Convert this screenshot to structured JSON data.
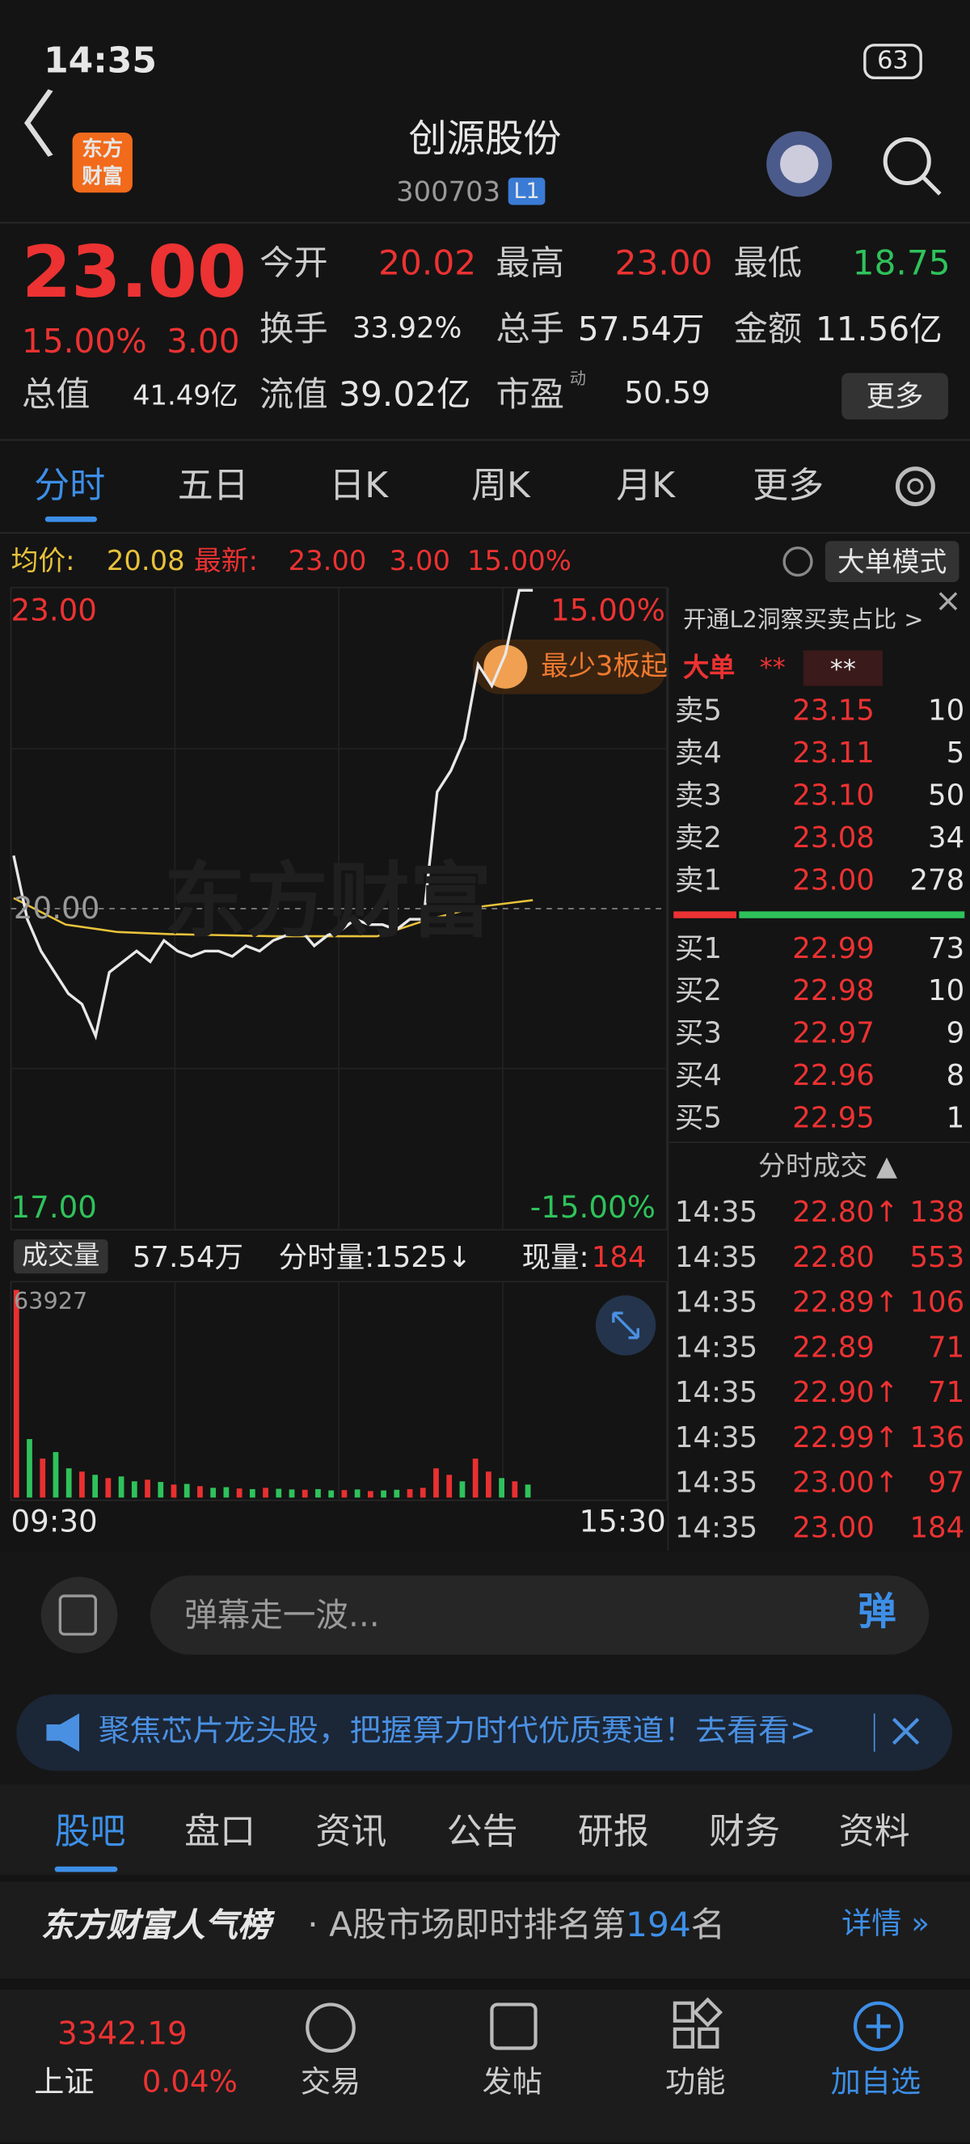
{
  "status_bar": {
    "time": "14:35",
    "battery": "63"
  },
  "header": {
    "logo": "东方财富",
    "title": "创源股份",
    "code": "300703",
    "level": "L1"
  },
  "quote": {
    "price": "23.00",
    "change_pct": "15.00%",
    "change": "3.00",
    "fields": [
      [
        "今开",
        "20.02"
      ],
      [
        "最高",
        "23.00"
      ],
      [
        "最低",
        "18.75"
      ],
      [
        "换手",
        "33.92%"
      ],
      [
        "总手",
        "57.54万"
      ],
      [
        "金额",
        "11.56亿"
      ],
      [
        "总值",
        "41.49亿"
      ],
      [
        "流值",
        "39.02亿"
      ],
      [
        "市盈",
        "50.59"
      ]
    ],
    "pe_tag": "动",
    "more": "更多"
  },
  "tabs": [
    "分时",
    "五日",
    "日K",
    "周K",
    "月K",
    "更多"
  ],
  "info": {
    "avg_label": "均价:",
    "avg": "20.08",
    "last_label": "最新:",
    "last": "23.00",
    "change": "3.00",
    "pct": "15.00%",
    "mode": "大单模式"
  },
  "chart": {
    "ylim": [
      17,
      23
    ],
    "labels": {
      "top": "23.00",
      "mid": "20.00",
      "bottom": "17.00",
      "top_pct": "15.00%",
      "bottom_pct": "-15.00%"
    },
    "price": [
      20.5,
      19.9,
      19.6,
      19.4,
      19.2,
      19.1,
      18.8,
      19.4,
      19.5,
      19.6,
      19.5,
      19.7,
      19.6,
      19.55,
      19.6,
      19.6,
      19.55,
      19.65,
      19.6,
      19.7,
      19.75,
      19.8,
      19.65,
      19.75,
      19.8,
      19.9,
      19.85,
      19.85,
      19.8,
      19.9,
      19.9,
      21.1,
      21.3,
      21.6,
      22.3,
      22.1,
      22.4,
      23.0,
      23.0
    ],
    "price_color": "#e8e8e8",
    "avg": [
      20.1,
      19.85,
      19.78,
      19.76,
      19.75,
      19.74,
      19.74,
      19.74,
      19.9,
      20.02,
      20.08
    ],
    "avg_color": "#e8c23a",
    "badge": "最少3板起",
    "watermark": "东方财富",
    "volume_label": "成交量",
    "volume_total": "57.54万",
    "volume_minute": "分时量:1525↓",
    "volume_now_label": "现量:",
    "volume_now": "184",
    "volume_max": "63927",
    "volume_ymax": 63927,
    "volume": [
      63927,
      18000,
      12000,
      14000,
      9000,
      8000,
      7000,
      6000,
      6500,
      5000,
      5500,
      4800,
      4000,
      4200,
      3500,
      3000,
      3200,
      2800,
      2600,
      3000,
      2700,
      2500,
      2400,
      2600,
      2200,
      2300,
      2500,
      2000,
      2200,
      2400,
      2600,
      3000,
      9000,
      7000,
      5000,
      12000,
      8000,
      6000,
      5000,
      4000
    ],
    "volume_colors": [
      "#e93030",
      "#2fc25b",
      "#e93030",
      "#2fc25b",
      "#2fc25b",
      "#e93030",
      "#2fc25b",
      "#e93030",
      "#2fc25b",
      "#2fc25b",
      "#e93030",
      "#2fc25b",
      "#e93030",
      "#2fc25b",
      "#e93030",
      "#2fc25b",
      "#2fc25b",
      "#e93030",
      "#2fc25b",
      "#e93030",
      "#2fc25b",
      "#2fc25b",
      "#e93030",
      "#2fc25b",
      "#2fc25b",
      "#e93030",
      "#2fc25b",
      "#e93030",
      "#2fc25b",
      "#2fc25b",
      "#e93030",
      "#e93030",
      "#e93030",
      "#e93030",
      "#2fc25b",
      "#e93030",
      "#e93030",
      "#2fc25b",
      "#e93030",
      "#2fc25b"
    ],
    "time_start": "09:30",
    "time_end": "15:30"
  },
  "panel": {
    "promo": "开通L2洞察买卖占比 >",
    "big_order": "大单",
    "mask1": "**",
    "mask2": "**",
    "asks": [
      [
        "卖5",
        "23.15",
        "10"
      ],
      [
        "卖4",
        "23.11",
        "5"
      ],
      [
        "卖3",
        "23.10",
        "50"
      ],
      [
        "卖2",
        "23.08",
        "34"
      ],
      [
        "卖1",
        "23.00",
        "278"
      ]
    ],
    "bids": [
      [
        "买1",
        "22.99",
        "73"
      ],
      [
        "买2",
        "22.98",
        "10"
      ],
      [
        "买3",
        "22.97",
        "9"
      ],
      [
        "买4",
        "22.96",
        "8"
      ],
      [
        "买5",
        "22.95",
        "1"
      ]
    ],
    "trades_title": "分时成交 ▲",
    "trades": [
      [
        "14:35",
        "22.80↑",
        "138"
      ],
      [
        "14:35",
        "22.80",
        "553"
      ],
      [
        "14:35",
        "22.89↑",
        "106"
      ],
      [
        "14:35",
        "22.89",
        "71"
      ],
      [
        "14:35",
        "22.90↑",
        "71"
      ],
      [
        "14:35",
        "22.99↑",
        "136"
      ],
      [
        "14:35",
        "23.00↑",
        "97"
      ],
      [
        "14:35",
        "23.00",
        "184"
      ]
    ]
  },
  "danmu": {
    "placeholder": "弹幕走一波...",
    "button": "弹"
  },
  "banner": "聚焦芯片龙头股，把握算力时代优质赛道！去看看>",
  "sections": [
    "股吧",
    "盘口",
    "资讯",
    "公告",
    "研报",
    "财务",
    "资料"
  ],
  "rank": {
    "brand": "东方财富人气榜",
    "text": "· A股市场即时排名第",
    "rank": "194",
    "suffix": "名",
    "detail": "详情 »"
  },
  "nav": {
    "index_value": "3342.19",
    "index_name": "上证",
    "index_pct": "0.04%",
    "items": [
      "交易",
      "发帖",
      "功能",
      "加自选"
    ]
  }
}
